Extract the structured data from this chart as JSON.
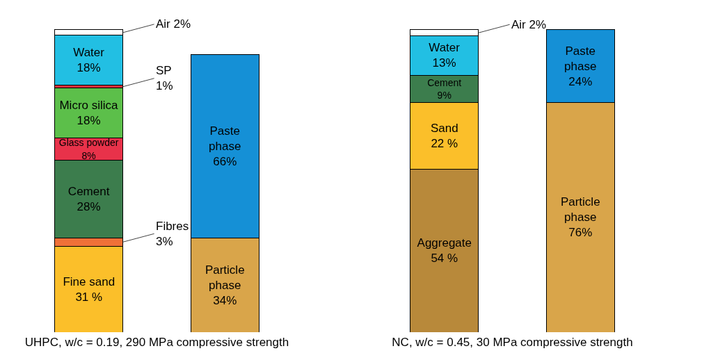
{
  "chart_data": [
    {
      "type": "bar",
      "stacked": true,
      "tick_labels": false,
      "xlabel": "UHPC, w/c = 0.19, 290 MPa compressive strength",
      "categories": [
        null,
        null
      ],
      "series": [
        {
          "name": "Fine sand",
          "color": "#fbbf2a",
          "values": [
            31,
            null
          ],
          "value_labels": [
            "31 %",
            null
          ]
        },
        {
          "name": "Fibres",
          "color": "#f07038",
          "values": [
            3,
            null
          ],
          "value_labels": [
            "3%",
            null
          ]
        },
        {
          "name": "Cement",
          "color": "#3c7d4d",
          "values": [
            28,
            null
          ],
          "value_labels": [
            "28%",
            null
          ]
        },
        {
          "name": "Glass powder",
          "color": "#e8324a",
          "values": [
            8,
            null
          ],
          "value_labels": [
            "8%",
            null
          ]
        },
        {
          "name": "Micro silica",
          "color": "#5cbf4a",
          "values": [
            18,
            null
          ],
          "value_labels": [
            "18%",
            null
          ]
        },
        {
          "name": "SP",
          "color": "#e0303a",
          "values": [
            1,
            null
          ],
          "value_labels": [
            "1%",
            null
          ]
        },
        {
          "name": "Water",
          "color": "#22bfe3",
          "values": [
            18,
            null
          ],
          "value_labels": [
            "18%",
            null
          ]
        },
        {
          "name": "Air",
          "color": "#ffffff",
          "values": [
            2,
            null
          ],
          "value_labels": [
            "2%",
            null
          ]
        },
        {
          "name": "Particle phase",
          "color": "#d9a54a",
          "values": [
            null,
            34
          ],
          "value_labels": [
            null,
            "34%"
          ]
        },
        {
          "name": "Paste phase",
          "color": "#1590d6",
          "values": [
            null,
            66
          ],
          "value_labels": [
            null,
            "66%"
          ]
        }
      ]
    },
    {
      "type": "bar",
      "stacked": true,
      "tick_labels": false,
      "xlabel": "NC, w/c = 0.45, 30 MPa compressive strength",
      "categories": [
        null,
        null
      ],
      "series": [
        {
          "name": "Aggregate",
          "color": "#b8893a",
          "values": [
            54,
            null
          ],
          "value_labels": [
            "54 %",
            null
          ]
        },
        {
          "name": "Sand",
          "color": "#fbbf2a",
          "values": [
            22,
            null
          ],
          "value_labels": [
            "22 %",
            null
          ]
        },
        {
          "name": "Cement",
          "color": "#3c7d4d",
          "values": [
            9,
            null
          ],
          "value_labels": [
            "9%",
            null
          ]
        },
        {
          "name": "Water",
          "color": "#22bfe3",
          "values": [
            13,
            null
          ],
          "value_labels": [
            "13%",
            null
          ]
        },
        {
          "name": "Air",
          "color": "#ffffff",
          "values": [
            2,
            null
          ],
          "value_labels": [
            "2%",
            null
          ]
        },
        {
          "name": "Particle phase",
          "color": "#d9a54a",
          "values": [
            null,
            76
          ],
          "value_labels": [
            null,
            "76%"
          ]
        },
        {
          "name": "Paste phase",
          "color": "#1590d6",
          "values": [
            null,
            24
          ],
          "value_labels": [
            null,
            "24%"
          ]
        }
      ]
    }
  ]
}
